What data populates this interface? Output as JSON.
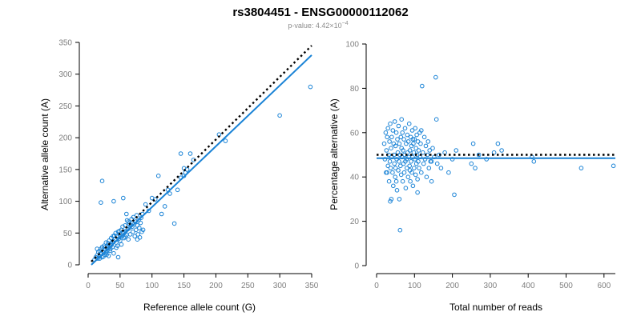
{
  "title": "rs3804451 - ENSG00000112062",
  "subtitle": {
    "prefix": "p-value: 4.42×10",
    "exponent": "−4"
  },
  "colors": {
    "points": "#1a83d6",
    "fit_line": "#1a83d6",
    "expected_line": "#000000",
    "tick_labels": "#7f7f7f"
  },
  "chart_data": [
    {
      "type": "scatter",
      "xlabel": "Reference allele count (G)",
      "ylabel": "Alternative allele count (A)",
      "xlim": [
        0,
        350
      ],
      "ylim": [
        0,
        350
      ],
      "xticks": [
        0,
        50,
        100,
        150,
        200,
        250,
        300,
        350
      ],
      "yticks": [
        0,
        50,
        100,
        150,
        200,
        250,
        300,
        350
      ],
      "grid": false,
      "expected_line": {
        "style": "dotted",
        "x": [
          5,
          350
        ],
        "y": [
          5,
          345
        ]
      },
      "fit_line": {
        "style": "solid",
        "x": [
          5,
          350
        ],
        "y": [
          0,
          330
        ]
      },
      "points": [
        [
          10,
          8
        ],
        [
          12,
          12
        ],
        [
          14,
          15
        ],
        [
          15,
          10
        ],
        [
          16,
          20
        ],
        [
          18,
          14
        ],
        [
          18,
          22
        ],
        [
          20,
          18
        ],
        [
          20,
          25
        ],
        [
          22,
          12
        ],
        [
          22,
          28
        ],
        [
          24,
          20
        ],
        [
          25,
          30
        ],
        [
          26,
          16
        ],
        [
          27,
          24
        ],
        [
          28,
          35
        ],
        [
          28,
          19
        ],
        [
          30,
          22
        ],
        [
          30,
          30
        ],
        [
          32,
          27
        ],
        [
          32,
          14
        ],
        [
          33,
          38
        ],
        [
          34,
          31
        ],
        [
          35,
          25
        ],
        [
          36,
          42
        ],
        [
          37,
          33
        ],
        [
          38,
          28
        ],
        [
          39,
          45
        ],
        [
          40,
          37
        ],
        [
          40,
          18
        ],
        [
          42,
          40
        ],
        [
          43,
          50
        ],
        [
          44,
          35
        ],
        [
          45,
          44
        ],
        [
          46,
          30
        ],
        [
          47,
          52
        ],
        [
          48,
          41
        ],
        [
          50,
          48
        ],
        [
          50,
          38
        ],
        [
          52,
          55
        ],
        [
          53,
          45
        ],
        [
          54,
          60
        ],
        [
          55,
          50
        ],
        [
          56,
          42
        ],
        [
          58,
          62
        ],
        [
          59,
          53
        ],
        [
          60,
          47
        ],
        [
          61,
          70
        ],
        [
          62,
          56
        ],
        [
          63,
          40
        ],
        [
          64,
          65
        ],
        [
          65,
          58
        ],
        [
          66,
          48
        ],
        [
          68,
          72
        ],
        [
          69,
          60
        ],
        [
          70,
          52
        ],
        [
          71,
          75
        ],
        [
          72,
          64
        ],
        [
          73,
          45
        ],
        [
          74,
          68
        ],
        [
          75,
          55
        ],
        [
          76,
          78
        ],
        [
          77,
          62
        ],
        [
          78,
          48
        ],
        [
          79,
          70
        ],
        [
          80,
          58
        ],
        [
          81,
          43
        ],
        [
          82,
          66
        ],
        [
          84,
          52
        ],
        [
          85,
          80
        ],
        [
          20,
          98
        ],
        [
          22,
          132
        ],
        [
          47,
          12
        ],
        [
          55,
          105
        ],
        [
          60,
          80
        ],
        [
          90,
          95
        ],
        [
          95,
          85
        ],
        [
          100,
          105
        ],
        [
          105,
          103
        ],
        [
          110,
          140
        ],
        [
          115,
          80
        ],
        [
          120,
          92
        ],
        [
          125,
          118
        ],
        [
          128,
          112
        ],
        [
          135,
          65
        ],
        [
          140,
          118
        ],
        [
          145,
          137
        ],
        [
          150,
          152
        ],
        [
          152,
          145
        ],
        [
          160,
          175
        ],
        [
          145,
          175
        ],
        [
          150,
          140
        ],
        [
          155,
          150
        ],
        [
          165,
          165
        ],
        [
          205,
          205
        ],
        [
          215,
          195
        ],
        [
          300,
          235
        ],
        [
          348,
          280
        ],
        [
          40,
          100
        ],
        [
          27,
          28
        ],
        [
          14,
          25
        ],
        [
          24,
          13
        ],
        [
          31,
          34
        ],
        [
          36,
          31
        ],
        [
          41,
          46
        ],
        [
          44,
          27
        ],
        [
          49,
          53
        ],
        [
          57,
          51
        ],
        [
          63,
          68
        ],
        [
          67,
          62
        ],
        [
          83,
          74
        ],
        [
          86,
          55
        ],
        [
          18,
          10
        ],
        [
          29,
          16
        ],
        [
          34,
          22
        ],
        [
          38,
          36
        ],
        [
          52,
          32
        ],
        [
          58,
          44
        ],
        [
          70,
          66
        ],
        [
          77,
          40
        ]
      ]
    },
    {
      "type": "scatter",
      "xlabel": "Total number of reads",
      "ylabel": "Percentage alternative (A)",
      "xlim": [
        0,
        630
      ],
      "ylim": [
        0,
        100
      ],
      "xticks": [
        0,
        100,
        200,
        300,
        400,
        500,
        600
      ],
      "yticks": [
        0,
        20,
        40,
        60,
        80,
        100
      ],
      "grid": false,
      "expected_line": {
        "style": "dotted",
        "x": [
          0,
          630
        ],
        "y": [
          50,
          50
        ]
      },
      "fit_line": {
        "style": "solid",
        "x": [
          0,
          630
        ],
        "y": [
          48.5,
          48.5
        ]
      },
      "points": [
        [
          20,
          55
        ],
        [
          22,
          48
        ],
        [
          24,
          60
        ],
        [
          25,
          42
        ],
        [
          26,
          52
        ],
        [
          28,
          58
        ],
        [
          30,
          45
        ],
        [
          30,
          62
        ],
        [
          32,
          50
        ],
        [
          33,
          38
        ],
        [
          34,
          56
        ],
        [
          35,
          47
        ],
        [
          36,
          64
        ],
        [
          37,
          44
        ],
        [
          38,
          53
        ],
        [
          39,
          30
        ],
        [
          40,
          58
        ],
        [
          40,
          49
        ],
        [
          42,
          42
        ],
        [
          43,
          61
        ],
        [
          44,
          36
        ],
        [
          45,
          55
        ],
        [
          46,
          50
        ],
        [
          47,
          46
        ],
        [
          48,
          65
        ],
        [
          49,
          40
        ],
        [
          50,
          54
        ],
        [
          50,
          44
        ],
        [
          52,
          60
        ],
        [
          53,
          48
        ],
        [
          54,
          34
        ],
        [
          55,
          57
        ],
        [
          56,
          51
        ],
        [
          57,
          43
        ],
        [
          58,
          63
        ],
        [
          59,
          47
        ],
        [
          60,
          30
        ],
        [
          60,
          55
        ],
        [
          62,
          50
        ],
        [
          62,
          16
        ],
        [
          63,
          45
        ],
        [
          64,
          58
        ],
        [
          65,
          41
        ],
        [
          66,
          53
        ],
        [
          67,
          49
        ],
        [
          68,
          60
        ],
        [
          69,
          38
        ],
        [
          70,
          52
        ],
        [
          71,
          46
        ],
        [
          72,
          57
        ],
        [
          73,
          42
        ],
        [
          74,
          50
        ],
        [
          75,
          62
        ],
        [
          76,
          47
        ],
        [
          77,
          35
        ],
        [
          78,
          55
        ],
        [
          79,
          48
        ],
        [
          80,
          44
        ],
        [
          81,
          59
        ],
        [
          82,
          51
        ],
        [
          83,
          40
        ],
        [
          84,
          56
        ],
        [
          85,
          49
        ],
        [
          86,
          64
        ],
        [
          87,
          45
        ],
        [
          88,
          52
        ],
        [
          89,
          38
        ],
        [
          90,
          58
        ],
        [
          91,
          47
        ],
        [
          92,
          54
        ],
        [
          93,
          42
        ],
        [
          94,
          61
        ],
        [
          95,
          49
        ],
        [
          96,
          36
        ],
        [
          97,
          55
        ],
        [
          98,
          51
        ],
        [
          99,
          44
        ],
        [
          100,
          57
        ],
        [
          101,
          48
        ],
        [
          102,
          62
        ],
        [
          103,
          41
        ],
        [
          104,
          53
        ],
        [
          105,
          46
        ],
        [
          106,
          59
        ],
        [
          107,
          50
        ],
        [
          108,
          39
        ],
        [
          109,
          56
        ],
        [
          110,
          47
        ],
        [
          111,
          52
        ],
        [
          112,
          44
        ],
        [
          114,
          60
        ],
        [
          115,
          49
        ],
        [
          116,
          55
        ],
        [
          118,
          42
        ],
        [
          120,
          81
        ],
        [
          122,
          51
        ],
        [
          124,
          46
        ],
        [
          126,
          58
        ],
        [
          128,
          48
        ],
        [
          130,
          54
        ],
        [
          132,
          40
        ],
        [
          134,
          50
        ],
        [
          136,
          56
        ],
        [
          138,
          44
        ],
        [
          140,
          52
        ],
        [
          142,
          47
        ],
        [
          145,
          38
        ],
        [
          148,
          53
        ],
        [
          152,
          49
        ],
        [
          156,
          85
        ],
        [
          158,
          66
        ],
        [
          160,
          46
        ],
        [
          165,
          50
        ],
        [
          170,
          44
        ],
        [
          180,
          51
        ],
        [
          190,
          42
        ],
        [
          200,
          48
        ],
        [
          205,
          32
        ],
        [
          210,
          52
        ],
        [
          250,
          46
        ],
        [
          255,
          55
        ],
        [
          260,
          44
        ],
        [
          270,
          50
        ],
        [
          290,
          48
        ],
        [
          310,
          51
        ],
        [
          320,
          55
        ],
        [
          330,
          52
        ],
        [
          410,
          49
        ],
        [
          415,
          47
        ],
        [
          540,
          44
        ],
        [
          625,
          45
        ],
        [
          28,
          42
        ],
        [
          36,
          29
        ],
        [
          52,
          38
        ],
        [
          66,
          66
        ],
        [
          88,
          43
        ],
        [
          96,
          57
        ],
        [
          108,
          33
        ],
        [
          118,
          61
        ],
        [
          145,
          47
        ]
      ]
    }
  ]
}
